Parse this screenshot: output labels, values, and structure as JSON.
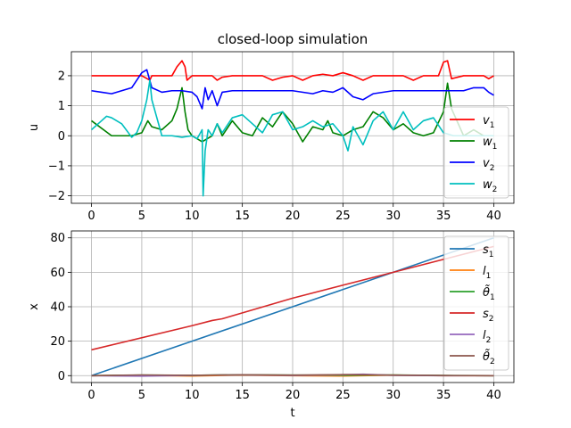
{
  "figure": {
    "title": "closed-loop simulation"
  },
  "chart_data": [
    {
      "type": "line",
      "title": "closed-loop simulation",
      "xlabel": "",
      "ylabel": "u",
      "xlim": [
        -2,
        42
      ],
      "ylim": [
        -2.25,
        2.8
      ],
      "xticks": [
        0,
        5,
        10,
        15,
        20,
        25,
        30,
        35,
        40
      ],
      "yticks": [
        -2,
        -1,
        0,
        1,
        2
      ],
      "grid": true,
      "legend_position": "lower-right",
      "series": [
        {
          "name": "v",
          "sub": "1",
          "color": "#ff0000",
          "x": [
            0,
            2,
            5,
            5.8,
            6,
            8,
            8.5,
            9,
            9.3,
            9.5,
            10,
            12,
            12.5,
            13,
            14,
            17,
            18,
            19,
            20,
            21,
            22,
            23,
            24,
            25,
            26,
            27,
            28,
            29,
            31,
            32,
            33,
            34.5,
            35,
            35.4,
            35.8,
            37,
            38,
            39,
            39.5,
            40
          ],
          "y": [
            2,
            2,
            2,
            1.85,
            2,
            2,
            2.3,
            2.5,
            2.3,
            1.85,
            2,
            2,
            1.85,
            1.95,
            2,
            2,
            1.85,
            1.95,
            2,
            1.85,
            2,
            2.05,
            2,
            2.1,
            2,
            1.85,
            2,
            2,
            2,
            1.85,
            2,
            2,
            2.45,
            2.5,
            1.9,
            2,
            2,
            2,
            1.9,
            2
          ]
        },
        {
          "name": "w",
          "sub": "1",
          "color": "#008000",
          "x": [
            0,
            2,
            4,
            5,
            5.6,
            6,
            7,
            8,
            8.5,
            9,
            9.3,
            9.6,
            10,
            11,
            12,
            12.5,
            13,
            14,
            15,
            16,
            17,
            18,
            19,
            20,
            21,
            22,
            23,
            23.5,
            24,
            25,
            26,
            27,
            28,
            29,
            30,
            31,
            32,
            33,
            34,
            35,
            35.4,
            35.8,
            37,
            38,
            39,
            40
          ],
          "y": [
            0.5,
            0,
            0,
            0.1,
            0.5,
            0.3,
            0.2,
            0.5,
            0.9,
            1.6,
            0.8,
            0.2,
            0,
            -0.2,
            0,
            0.4,
            0,
            0.5,
            0.1,
            0,
            0.6,
            0.3,
            0.8,
            0.4,
            -0.2,
            0.3,
            0.2,
            0.5,
            0.1,
            0,
            0.2,
            0.3,
            0.8,
            0.6,
            0.2,
            0.4,
            0.1,
            0,
            0.1,
            0.8,
            1.75,
            0.9,
            0,
            0.2,
            0,
            0
          ]
        },
        {
          "name": "v",
          "sub": "2",
          "color": "#0000ff",
          "x": [
            0,
            1,
            2,
            3,
            4,
            5,
            5.5,
            6,
            7,
            8,
            9,
            10,
            10.5,
            11,
            11.3,
            11.6,
            12,
            12.5,
            13,
            14,
            15,
            20,
            22,
            23,
            24,
            25,
            26,
            27,
            28,
            30,
            33,
            35,
            37,
            38,
            39,
            39.5,
            40
          ],
          "y": [
            1.5,
            1.45,
            1.4,
            1.5,
            1.6,
            2.1,
            2.2,
            1.6,
            1.45,
            1.5,
            1.5,
            1.45,
            1.3,
            0.9,
            1.6,
            1.2,
            1.5,
            1.0,
            1.45,
            1.5,
            1.5,
            1.5,
            1.4,
            1.5,
            1.45,
            1.6,
            1.3,
            1.2,
            1.4,
            1.5,
            1.5,
            1.5,
            1.5,
            1.6,
            1.6,
            1.45,
            1.35
          ]
        },
        {
          "name": "w",
          "sub": "2",
          "color": "#00bfbf",
          "x": [
            0,
            1,
            1.5,
            2,
            3,
            4,
            4.5,
            5,
            5.5,
            5.8,
            6,
            7,
            8,
            9,
            10,
            10.5,
            11,
            11.1,
            11.3,
            11.6,
            12,
            12.5,
            13,
            14,
            15,
            16,
            17,
            18,
            19,
            20,
            21,
            22,
            23,
            24,
            25,
            25.5,
            26,
            27,
            28,
            29,
            30,
            31,
            32,
            33,
            34,
            35,
            36,
            37,
            38,
            39,
            40
          ],
          "y": [
            0.2,
            0.5,
            0.65,
            0.6,
            0.4,
            -0.05,
            0.1,
            0.5,
            1.2,
            1.85,
            1.2,
            0,
            0,
            -0.05,
            0,
            -0.1,
            0.2,
            -2,
            -0.5,
            0.2,
            0,
            0.4,
            0.1,
            0.6,
            0.7,
            0.4,
            0.1,
            0.7,
            0.8,
            0.2,
            0.3,
            0.5,
            0.3,
            0.4,
            0,
            -0.5,
            0.3,
            -0.3,
            0.5,
            0.8,
            0.2,
            0.8,
            0.2,
            0.5,
            0.6,
            0.1,
            0,
            0,
            0,
            0,
            0
          ]
        }
      ]
    },
    {
      "type": "line",
      "title": "",
      "xlabel": "t",
      "ylabel": "x",
      "xlim": [
        -2,
        42
      ],
      "ylim": [
        -4,
        84
      ],
      "xticks": [
        0,
        5,
        10,
        15,
        20,
        25,
        30,
        35,
        40
      ],
      "yticks": [
        0,
        20,
        40,
        60,
        80
      ],
      "grid": true,
      "legend_position": "upper-right",
      "series": [
        {
          "name": "s",
          "sub": "1",
          "color": "#1f77b4",
          "x": [
            0,
            10,
            20,
            30,
            40
          ],
          "y": [
            0,
            20,
            40,
            60,
            80
          ]
        },
        {
          "name": "l",
          "sub": "1",
          "color": "#ff7f0e",
          "x": [
            0,
            5,
            10,
            15,
            20,
            25,
            30,
            35,
            40
          ],
          "y": [
            0,
            0.2,
            -0.2,
            0.3,
            0,
            -0.2,
            0.3,
            0,
            0
          ]
        },
        {
          "name": "θ̃",
          "sub": "1",
          "color": "#2ca02c",
          "x": [
            0,
            5,
            10,
            15,
            20,
            25,
            30,
            35,
            40
          ],
          "y": [
            0,
            0.3,
            0.2,
            0.5,
            0.3,
            0.2,
            0.4,
            0.1,
            0
          ]
        },
        {
          "name": "s",
          "sub": "2",
          "color": "#d62728",
          "x": [
            0,
            10,
            12,
            13,
            20,
            30,
            40
          ],
          "y": [
            15,
            29,
            32,
            33,
            45,
            60,
            75
          ]
        },
        {
          "name": "l",
          "sub": "2",
          "color": "#9467bd",
          "x": [
            0,
            5,
            10,
            15,
            20,
            25,
            27,
            30,
            35,
            40
          ],
          "y": [
            0,
            -0.3,
            0.2,
            0.4,
            0.1,
            0.5,
            0.8,
            0.2,
            0,
            0
          ]
        },
        {
          "name": "θ̃",
          "sub": "2",
          "color": "#8c564b",
          "x": [
            0,
            5,
            10,
            15,
            20,
            25,
            30,
            35,
            40
          ],
          "y": [
            0,
            0.4,
            0.2,
            0.5,
            0.3,
            0.6,
            0.3,
            0.1,
            0
          ]
        }
      ]
    }
  ]
}
